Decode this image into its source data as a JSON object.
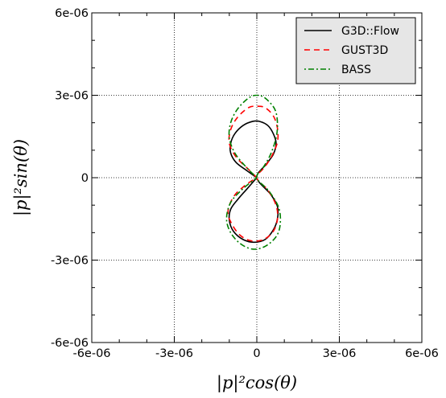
{
  "chart_data": {
    "type": "line",
    "title": "",
    "xlabel": "|p|²cos(θ)",
    "ylabel": "|p|²sin(θ)",
    "xlim": [
      -6e-06,
      6e-06
    ],
    "ylim": [
      -6e-06,
      6e-06
    ],
    "xticks": [
      -6e-06,
      -3e-06,
      0,
      3e-06,
      6e-06
    ],
    "yticks": [
      -6e-06,
      -3e-06,
      0,
      3e-06,
      6e-06
    ],
    "xtick_labels": [
      "-6e-06",
      "-3e-06",
      "0",
      "3e-06",
      "6e-06"
    ],
    "ytick_labels": [
      "-6e-06",
      "-3e-06",
      "0",
      "3e-06",
      "6e-06"
    ],
    "grid": true,
    "legend_position": "top-right",
    "series": [
      {
        "name": "G3D::Flow",
        "color": "#000000",
        "dash": "solid",
        "points": [
          [
            0,
            0
          ],
          [
            -3.5e-07,
            2.5e-07
          ],
          [
            -7.5e-07,
            5.5e-07
          ],
          [
            -9.5e-07,
            9e-07
          ],
          [
            -9.5e-07,
            1.25e-06
          ],
          [
            -8e-07,
            1.6e-06
          ],
          [
            -5e-07,
            1.9e-06
          ],
          [
            -1.5e-07,
            2.05e-06
          ],
          [
            1e-07,
            2.05e-06
          ],
          [
            4e-07,
            1.9e-06
          ],
          [
            6e-07,
            1.6e-06
          ],
          [
            7e-07,
            1.25e-06
          ],
          [
            6e-07,
            8.5e-07
          ],
          [
            3.5e-07,
            5e-07
          ],
          [
            0,
            0
          ],
          [
            5e-07,
            -6e-07
          ],
          [
            7.5e-07,
            -1.05e-06
          ],
          [
            7.5e-07,
            -1.5e-06
          ],
          [
            6e-07,
            -1.9e-06
          ],
          [
            3e-07,
            -2.25e-06
          ],
          [
            -1e-07,
            -2.35e-06
          ],
          [
            -5e-07,
            -2.25e-06
          ],
          [
            -8.5e-07,
            -1.95e-06
          ],
          [
            -1e-06,
            -1.55e-06
          ],
          [
            -9.5e-07,
            -1.15e-06
          ],
          [
            -7e-07,
            -8e-07
          ],
          [
            -3.5e-07,
            -4e-07
          ],
          [
            0,
            0
          ]
        ]
      },
      {
        "name": "GUST3D",
        "color": "#ff0000",
        "dash": "dashed",
        "points": [
          [
            0,
            0
          ],
          [
            -3.5e-07,
            3.5e-07
          ],
          [
            -7.5e-07,
            7.5e-07
          ],
          [
            -1e-06,
            1.25e-06
          ],
          [
            -9.5e-07,
            1.75e-06
          ],
          [
            -7e-07,
            2.2e-06
          ],
          [
            -3e-07,
            2.55e-06
          ],
          [
            0,
            2.6e-06
          ],
          [
            3e-07,
            2.55e-06
          ],
          [
            6e-07,
            2.25e-06
          ],
          [
            7.5e-07,
            1.8e-06
          ],
          [
            7.5e-07,
            1.3e-06
          ],
          [
            5.5e-07,
            8e-07
          ],
          [
            3e-07,
            4e-07
          ],
          [
            0,
            0
          ],
          [
            4e-07,
            -4.5e-07
          ],
          [
            7e-07,
            -1e-06
          ],
          [
            7.5e-07,
            -1.5e-06
          ],
          [
            6e-07,
            -1.95e-06
          ],
          [
            2.5e-07,
            -2.25e-06
          ],
          [
            -2e-07,
            -2.3e-06
          ],
          [
            -6e-07,
            -2.1e-06
          ],
          [
            -9e-07,
            -1.7e-06
          ],
          [
            -1.05e-06,
            -1.25e-06
          ],
          [
            -8.5e-07,
            -7e-07
          ],
          [
            -4.5e-07,
            -3e-07
          ],
          [
            0,
            0
          ]
        ]
      },
      {
        "name": "BASS",
        "color": "#008000",
        "dash": "dashdot",
        "points": [
          [
            0,
            0
          ],
          [
            -4e-07,
            4e-07
          ],
          [
            -8e-07,
            9e-07
          ],
          [
            -1e-06,
            1.45e-06
          ],
          [
            -9.5e-07,
            2e-06
          ],
          [
            -7e-07,
            2.5e-06
          ],
          [
            -3e-07,
            2.9e-06
          ],
          [
            0,
            3e-06
          ],
          [
            3e-07,
            2.9e-06
          ],
          [
            6.5e-07,
            2.5e-06
          ],
          [
            7.5e-07,
            2e-06
          ],
          [
            7e-07,
            1.45e-06
          ],
          [
            5e-07,
            8.5e-07
          ],
          [
            2.5e-07,
            4e-07
          ],
          [
            0,
            0
          ],
          [
            4.5e-07,
            -5e-07
          ],
          [
            8e-07,
            -1.1e-06
          ],
          [
            8.5e-07,
            -1.7e-06
          ],
          [
            7e-07,
            -2.15e-06
          ],
          [
            3e-07,
            -2.5e-06
          ],
          [
            -1.5e-07,
            -2.6e-06
          ],
          [
            -6e-07,
            -2.4e-06
          ],
          [
            -9.5e-07,
            -2e-06
          ],
          [
            -1.1e-06,
            -1.5e-06
          ],
          [
            -9.5e-07,
            -9e-07
          ],
          [
            -5e-07,
            -4e-07
          ],
          [
            0,
            0
          ]
        ]
      }
    ]
  }
}
